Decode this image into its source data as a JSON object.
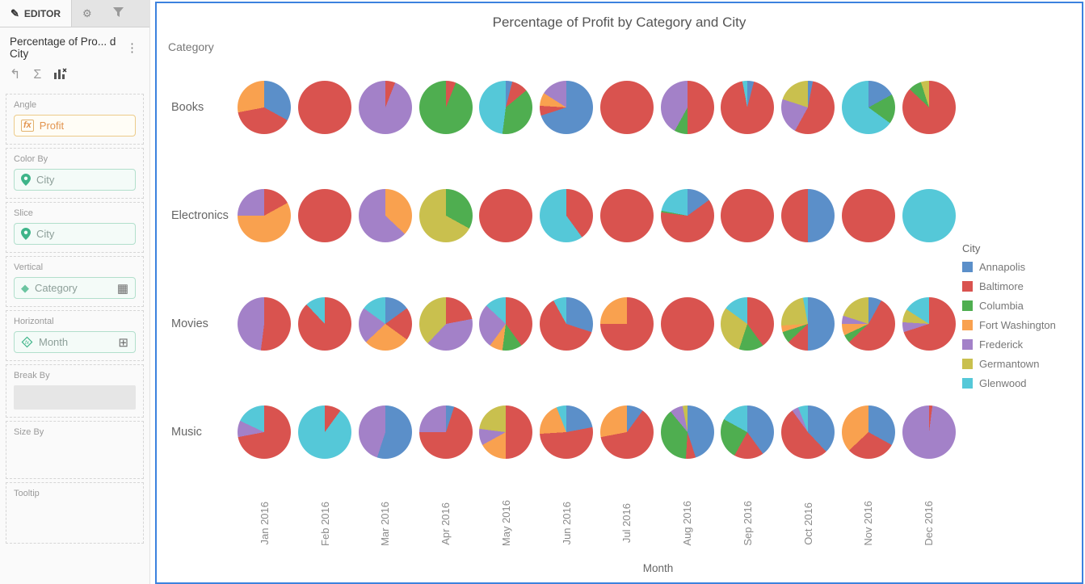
{
  "sidebar": {
    "tabs": [
      {
        "label": "EDITOR",
        "icon": "pencil-icon"
      },
      {
        "label": "",
        "icon": "gear-icon"
      },
      {
        "label": "",
        "icon": "filter-icon"
      }
    ],
    "title": "Percentage of Pro... d City",
    "toolbar": {
      "undo": "undo-icon",
      "sigma": "sigma-icon",
      "chart": "chart-x-icon"
    },
    "fields": [
      {
        "label": "Angle",
        "value": "Profit"
      },
      {
        "label": "Color By",
        "value": "City"
      },
      {
        "label": "Slice",
        "value": "City"
      },
      {
        "label": "Vertical",
        "value": "Category"
      },
      {
        "label": "Horizontal",
        "value": "Month"
      },
      {
        "label": "Break By",
        "value": ""
      },
      {
        "label": "Size By",
        "value": ""
      },
      {
        "label": "Tooltip",
        "value": ""
      }
    ]
  },
  "chart_data": {
    "type": "pie",
    "layout": "trellis",
    "title": "Percentage of Profit by Category and City",
    "vertical_label": "Category",
    "horizontal_label": "Month",
    "categories": [
      "Books",
      "Electronics",
      "Movies",
      "Music"
    ],
    "months": [
      "Jan 2016",
      "Feb 2016",
      "Mar 2016",
      "Apr 2016",
      "May 2016",
      "Jun 2016",
      "Jul 2016",
      "Aug 2016",
      "Sep 2016",
      "Oct 2016",
      "Nov 2016",
      "Dec 2016"
    ],
    "legend": {
      "title": "City",
      "entries": [
        {
          "name": "Annapolis",
          "color": "#5b8fc9"
        },
        {
          "name": "Baltimore",
          "color": "#d9534f"
        },
        {
          "name": "Columbia",
          "color": "#4fae50"
        },
        {
          "name": "Fort Washington",
          "color": "#f9a14f"
        },
        {
          "name": "Frederick",
          "color": "#a381c8"
        },
        {
          "name": "Germantown",
          "color": "#c9c04e"
        },
        {
          "name": "Glenwood",
          "color": "#55c8d8"
        }
      ]
    },
    "colors": {
      "Annapolis": "#5b8fc9",
      "Baltimore": "#d9534f",
      "Columbia": "#4fae50",
      "Fort Washington": "#f9a14f",
      "Frederick": "#a381c8",
      "Germantown": "#c9c04e",
      "Glenwood": "#55c8d8"
    },
    "pies": {
      "Books": [
        [
          [
            "Annapolis",
            33
          ],
          [
            "Baltimore",
            39
          ],
          [
            "Fort Washington",
            28
          ]
        ],
        [
          [
            "Baltimore",
            100
          ]
        ],
        [
          [
            "Baltimore",
            6
          ],
          [
            "Frederick",
            94
          ]
        ],
        [
          [
            "Baltimore",
            6
          ],
          [
            "Columbia",
            94
          ]
        ],
        [
          [
            "Annapolis",
            4
          ],
          [
            "Baltimore",
            10
          ],
          [
            "Columbia",
            38
          ],
          [
            "Glenwood",
            48
          ]
        ],
        [
          [
            "Annapolis",
            70
          ],
          [
            "Baltimore",
            6
          ],
          [
            "Fort Washington",
            8
          ],
          [
            "Frederick",
            16
          ]
        ],
        [
          [
            "Baltimore",
            100
          ]
        ],
        [
          [
            "Baltimore",
            50
          ],
          [
            "Columbia",
            8
          ],
          [
            "Frederick",
            42
          ]
        ],
        [
          [
            "Annapolis",
            4
          ],
          [
            "Baltimore",
            93
          ],
          [
            "Glenwood",
            3
          ]
        ],
        [
          [
            "Annapolis",
            3
          ],
          [
            "Baltimore",
            55
          ],
          [
            "Frederick",
            22
          ],
          [
            "Germantown",
            20
          ]
        ],
        [
          [
            "Annapolis",
            17
          ],
          [
            "Columbia",
            18
          ],
          [
            "Glenwood",
            65
          ]
        ],
        [
          [
            "Baltimore",
            87
          ],
          [
            "Columbia",
            8
          ],
          [
            "Germantown",
            5
          ]
        ]
      ],
      "Electronics": [
        [
          [
            "Baltimore",
            17
          ],
          [
            "Fort Washington",
            58
          ],
          [
            "Frederick",
            25
          ]
        ],
        [
          [
            "Baltimore",
            100
          ]
        ],
        [
          [
            "Fort Washington",
            37
          ],
          [
            "Frederick",
            63
          ]
        ],
        [
          [
            "Columbia",
            33
          ],
          [
            "Germantown",
            67
          ]
        ],
        [
          [
            "Baltimore",
            100
          ]
        ],
        [
          [
            "Baltimore",
            40
          ],
          [
            "Glenwood",
            60
          ]
        ],
        [
          [
            "Baltimore",
            100
          ]
        ],
        [
          [
            "Annapolis",
            15
          ],
          [
            "Baltimore",
            62
          ],
          [
            "Columbia",
            1
          ],
          [
            "Glenwood",
            22
          ]
        ],
        [
          [
            "Baltimore",
            100
          ]
        ],
        [
          [
            "Annapolis",
            50
          ],
          [
            "Baltimore",
            50
          ]
        ],
        [
          [
            "Baltimore",
            100
          ]
        ],
        [
          [
            "Glenwood",
            100
          ]
        ]
      ],
      "Movies": [
        [
          [
            "Baltimore",
            52
          ],
          [
            "Frederick",
            48
          ]
        ],
        [
          [
            "Baltimore",
            88
          ],
          [
            "Glenwood",
            12
          ]
        ],
        [
          [
            "Annapolis",
            15
          ],
          [
            "Baltimore",
            20
          ],
          [
            "Fort Washington",
            28
          ],
          [
            "Frederick",
            22
          ],
          [
            "Glenwood",
            15
          ]
        ],
        [
          [
            "Baltimore",
            22
          ],
          [
            "Frederick",
            40
          ],
          [
            "Germantown",
            38
          ]
        ],
        [
          [
            "Baltimore",
            40
          ],
          [
            "Columbia",
            12
          ],
          [
            "Fort Washington",
            8
          ],
          [
            "Frederick",
            27
          ],
          [
            "Glenwood",
            13
          ]
        ],
        [
          [
            "Annapolis",
            30
          ],
          [
            "Baltimore",
            62
          ],
          [
            "Glenwood",
            8
          ]
        ],
        [
          [
            "Baltimore",
            75
          ],
          [
            "Fort Washington",
            25
          ]
        ],
        [
          [
            "Baltimore",
            100
          ]
        ],
        [
          [
            "Baltimore",
            40
          ],
          [
            "Columbia",
            15
          ],
          [
            "Germantown",
            30
          ],
          [
            "Glenwood",
            15
          ]
        ],
        [
          [
            "Annapolis",
            50
          ],
          [
            "Baltimore",
            13
          ],
          [
            "Columbia",
            7
          ],
          [
            "Fort Washington",
            4
          ],
          [
            "Germantown",
            23
          ],
          [
            "Glenwood",
            3
          ]
        ],
        [
          [
            "Annapolis",
            8
          ],
          [
            "Baltimore",
            55
          ],
          [
            "Columbia",
            5
          ],
          [
            "Fort Washington",
            7
          ],
          [
            "Frederick",
            5
          ],
          [
            "Germantown",
            20
          ]
        ],
        [
          [
            "Baltimore",
            70
          ],
          [
            "Frederick",
            6
          ],
          [
            "Germantown",
            8
          ],
          [
            "Glenwood",
            16
          ]
        ]
      ],
      "Music": [
        [
          [
            "Baltimore",
            72
          ],
          [
            "Frederick",
            10
          ],
          [
            "Glenwood",
            18
          ]
        ],
        [
          [
            "Baltimore",
            10
          ],
          [
            "Glenwood",
            90
          ]
        ],
        [
          [
            "Annapolis",
            55
          ],
          [
            "Frederick",
            45
          ]
        ],
        [
          [
            "Annapolis",
            5
          ],
          [
            "Baltimore",
            70
          ],
          [
            "Frederick",
            25
          ]
        ],
        [
          [
            "Baltimore",
            50
          ],
          [
            "Fort Washington",
            17
          ],
          [
            "Frederick",
            10
          ],
          [
            "Germantown",
            23
          ]
        ],
        [
          [
            "Annapolis",
            22
          ],
          [
            "Baltimore",
            52
          ],
          [
            "Fort Washington",
            20
          ],
          [
            "Glenwood",
            6
          ]
        ],
        [
          [
            "Annapolis",
            10
          ],
          [
            "Baltimore",
            62
          ],
          [
            "Fort Washington",
            28
          ]
        ],
        [
          [
            "Annapolis",
            45
          ],
          [
            "Baltimore",
            6
          ],
          [
            "Columbia",
            38
          ],
          [
            "Frederick",
            8
          ],
          [
            "Germantown",
            3
          ]
        ],
        [
          [
            "Annapolis",
            40
          ],
          [
            "Baltimore",
            18
          ],
          [
            "Columbia",
            25
          ],
          [
            "Glenwood",
            17
          ]
        ],
        [
          [
            "Annapolis",
            38
          ],
          [
            "Baltimore",
            52
          ],
          [
            "Frederick",
            4
          ],
          [
            "Glenwood",
            6
          ]
        ],
        [
          [
            "Annapolis",
            33
          ],
          [
            "Baltimore",
            30
          ],
          [
            "Fort Washington",
            37
          ]
        ],
        [
          [
            "Baltimore",
            2
          ],
          [
            "Frederick",
            98
          ]
        ]
      ]
    }
  }
}
